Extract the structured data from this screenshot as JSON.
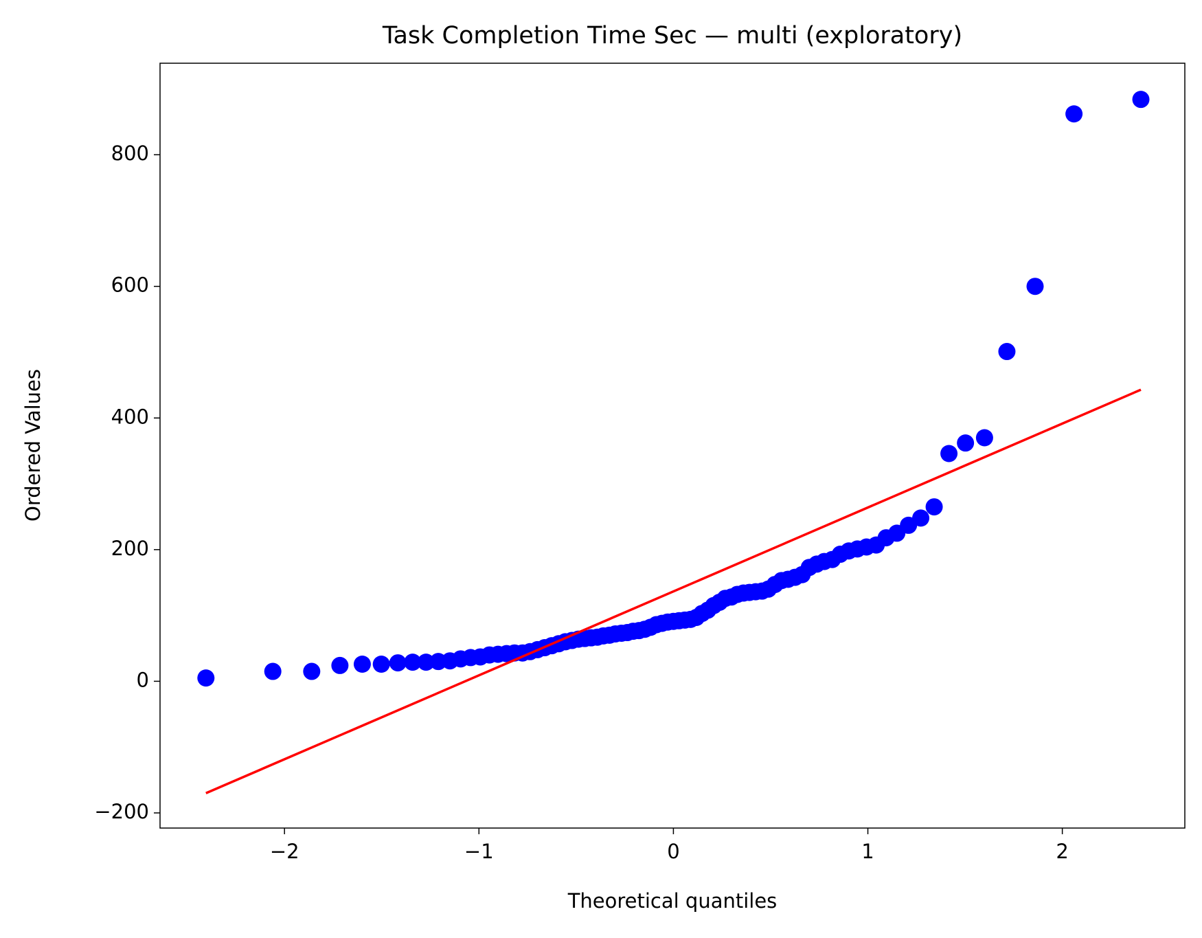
{
  "chart_data": {
    "type": "scatter",
    "title": "Task Completion Time Sec — multi (exploratory)",
    "x_label": "Theoretical quantiles",
    "y_label": "Ordered Values",
    "xlim": [
      -2.64,
      2.63
    ],
    "ylim": [
      -223,
      939
    ],
    "xticks": [
      {
        "value": -2,
        "label": "−2"
      },
      {
        "value": -1,
        "label": "−1"
      },
      0,
      1,
      2
    ],
    "yticks": [
      {
        "value": -200,
        "label": "−200"
      },
      0,
      200,
      400,
      600,
      800
    ],
    "series": [
      {
        "color": "#0000ff",
        "x": [
          -2.404,
          -2.06,
          -1.86,
          -1.715,
          -1.6,
          -1.502,
          -1.417,
          -1.341,
          -1.272,
          -1.209,
          -1.149,
          -1.094,
          -1.043,
          -0.993,
          -0.946,
          -0.902,
          -0.858,
          -0.817,
          -0.776,
          -0.737,
          -0.699,
          -0.662,
          -0.626,
          -0.59,
          -0.556,
          -0.522,
          -0.488,
          -0.456,
          -0.423,
          -0.391,
          -0.36,
          -0.329,
          -0.298,
          -0.267,
          -0.237,
          -0.207,
          -0.177,
          -0.147,
          -0.118,
          -0.088,
          -0.059,
          -0.029,
          0,
          0.029,
          0.059,
          0.088,
          0.118,
          0.147,
          0.177,
          0.207,
          0.237,
          0.267,
          0.298,
          0.329,
          0.36,
          0.391,
          0.423,
          0.456,
          0.488,
          0.522,
          0.556,
          0.59,
          0.626,
          0.662,
          0.699,
          0.737,
          0.776,
          0.817,
          0.858,
          0.902,
          0.946,
          0.993,
          1.043,
          1.094,
          1.149,
          1.209,
          1.272,
          1.341,
          1.417,
          1.502,
          1.6,
          1.715,
          1.86,
          2.06,
          2.404
        ],
        "values": [
          5,
          15,
          15,
          24,
          26,
          26,
          28,
          29,
          29,
          30,
          31,
          34,
          36,
          37,
          40,
          41,
          42,
          43,
          43,
          45,
          48,
          51,
          54,
          57,
          60,
          62,
          64,
          65,
          66,
          67,
          69,
          70,
          72,
          73,
          74,
          76,
          77,
          79,
          82,
          86,
          88,
          90,
          91,
          92,
          93,
          94,
          97,
          103,
          108,
          115,
          120,
          126,
          128,
          132,
          134,
          135,
          136,
          137,
          140,
          147,
          153,
          155,
          158,
          162,
          173,
          178,
          182,
          185,
          193,
          198,
          201,
          204,
          207,
          218,
          225,
          237,
          248,
          265,
          346,
          362,
          370,
          501,
          600,
          862,
          884
        ]
      },
      {
        "type": "line",
        "color": "#ff0000",
        "x": [
          -2.404,
          2.404
        ],
        "values": [
          -170,
          443
        ]
      }
    ]
  }
}
